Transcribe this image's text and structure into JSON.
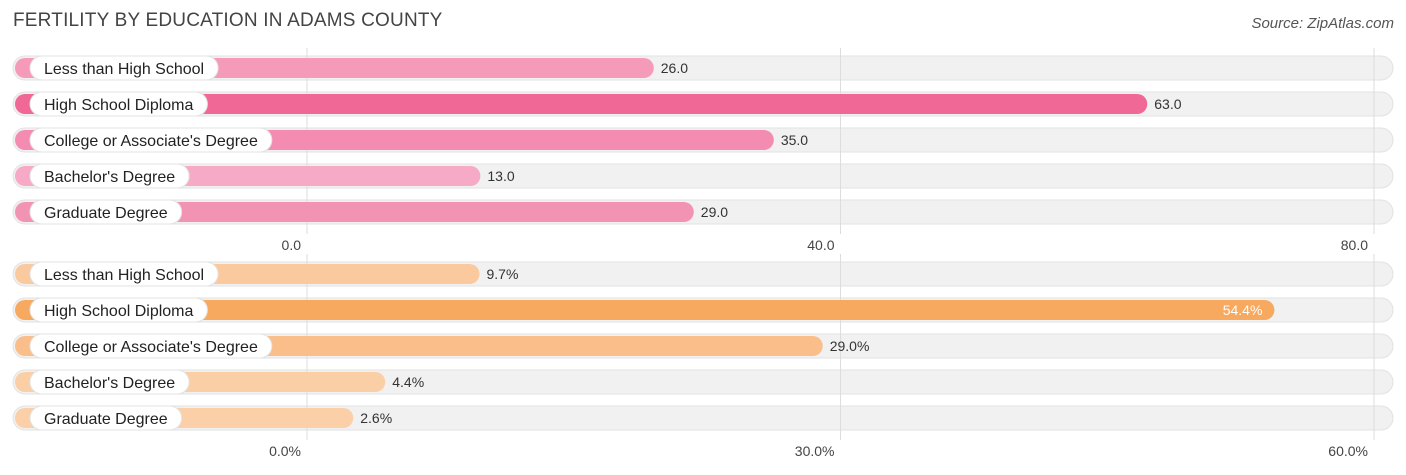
{
  "title": "FERTILITY BY EDUCATION IN ADAMS COUNTY",
  "source": "Source: ZipAtlas.com",
  "chart_data": [
    {
      "type": "bar",
      "orientation": "horizontal",
      "categories": [
        "Less than High School",
        "High School Diploma",
        "College or Associate's Degree",
        "Bachelor's Degree",
        "Graduate Degree"
      ],
      "values": [
        26.0,
        63.0,
        35.0,
        13.0,
        29.0
      ],
      "value_labels": [
        "26.0",
        "63.0",
        "35.0",
        "13.0",
        "29.0"
      ],
      "xlim": [
        0,
        80
      ],
      "ticks": [
        0,
        40,
        80
      ],
      "tick_labels": [
        "0.0",
        "40.0",
        "80.0"
      ],
      "colors": [
        "#f59ab8",
        "#f06895",
        "#f38cb0",
        "#f7aac5",
        "#f393b4"
      ],
      "grid": true
    },
    {
      "type": "bar",
      "orientation": "horizontal",
      "categories": [
        "Less than High School",
        "High School Diploma",
        "College or Associate's Degree",
        "Bachelor's Degree",
        "Graduate Degree"
      ],
      "values": [
        9.7,
        54.4,
        29.0,
        4.4,
        2.6
      ],
      "value_labels": [
        "9.7%",
        "54.4%",
        "29.0%",
        "4.4%",
        "2.6%"
      ],
      "xlim": [
        0,
        60
      ],
      "ticks": [
        0,
        30,
        60
      ],
      "tick_labels": [
        "0.0%",
        "30.0%",
        "60.0%"
      ],
      "colors": [
        "#fac99e",
        "#f7a95f",
        "#f9be8a",
        "#fbcfa6",
        "#fbcfa8"
      ],
      "grid": true
    }
  ]
}
